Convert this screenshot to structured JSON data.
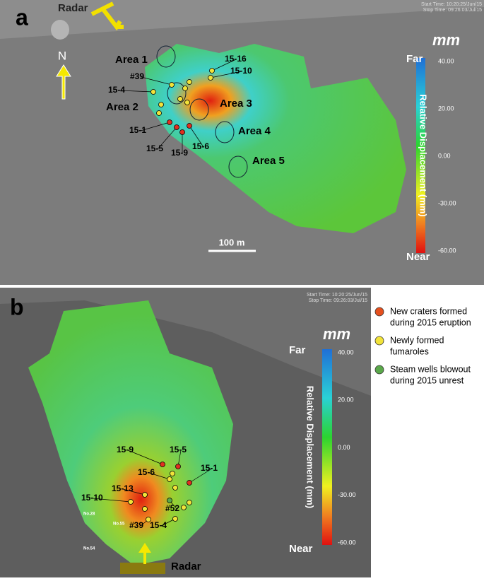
{
  "panel_a": {
    "label": "a",
    "radar": "Radar",
    "north": "N",
    "start_time": "Start Time: 10:20:25/Jun/15",
    "stop_time": "Stop Time: 09:26:03/Jul/15",
    "areas": [
      "Area 1",
      "Area 2",
      "Area 3",
      "Area 4",
      "Area 5"
    ],
    "points": [
      "15-16",
      "15-10",
      "#39",
      "15-4",
      "15-1",
      "15-5",
      "15-9",
      "15-6"
    ],
    "scale_bar": "100 m",
    "colorbar": {
      "unit": "mm",
      "far": "Far",
      "near": "Near",
      "title": "Relative Displacement (mm)",
      "ticks": [
        "40.00",
        "20.00",
        "0.00",
        "-30.00",
        "-60.00"
      ]
    }
  },
  "panel_b": {
    "label": "b",
    "radar": "Radar",
    "start_time": "Start Time: 10:20:25/Jun/15",
    "stop_time": "Stop Time: 09:26:03/Jul/15",
    "points": [
      "15-9",
      "15-5",
      "15-6",
      "15-1",
      "15-13",
      "15-10",
      "#52",
      "#39",
      "15-4",
      "No.28",
      "No.55",
      "No.54"
    ],
    "colorbar": {
      "unit": "mm",
      "far": "Far",
      "near": "Near",
      "title": "Relative Displacement (mm)",
      "ticks": [
        "40.00",
        "20.00",
        "0.00",
        "-30.00",
        "-60.00"
      ]
    }
  },
  "legend": [
    {
      "color": "#e5501e",
      "lines": [
        "New craters formed",
        "during 2015 eruption"
      ]
    },
    {
      "color": "#f2e33a",
      "lines": [
        "Newly formed",
        "fumaroles"
      ]
    },
    {
      "color": "#5aa84a",
      "lines": [
        "Steam wells blowout",
        "during 2015 unrest"
      ]
    }
  ]
}
